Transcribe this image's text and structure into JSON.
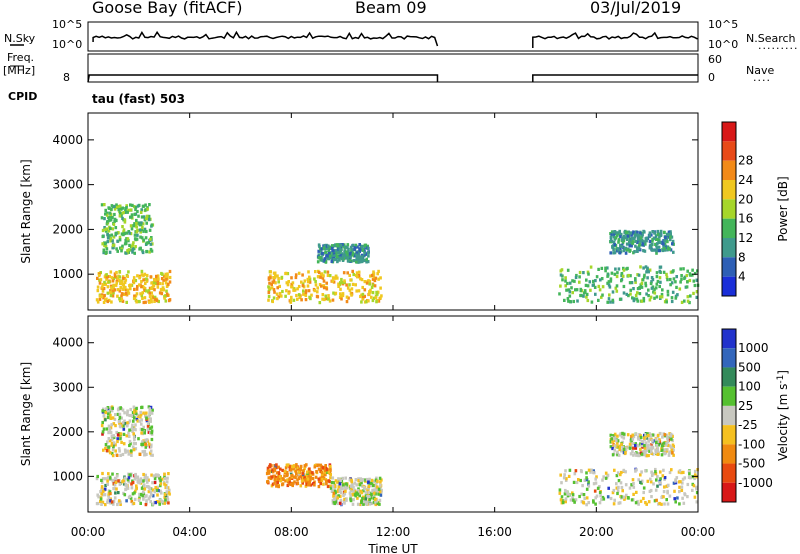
{
  "header": {
    "station": "Goose Bay (fitACF)",
    "beam": "Beam 09",
    "date": "03/Jul/2019"
  },
  "strip": {
    "nsky_label": "N.Sky",
    "nsearch_label": "N.Search",
    "nsearch_dots": ".........",
    "top_ticks": [
      "10^5",
      "10^0"
    ],
    "freq_label_1": "Freq.",
    "freq_label_2": "[MHz]",
    "freq_tick": "8",
    "nave_label": "Nave",
    "nave_dots": "....",
    "nave_ticks": [
      "60",
      "0"
    ],
    "cpid_label": "CPID",
    "cpid_value": "tau (fast) 503"
  },
  "chart_data": [
    {
      "type": "heatmap",
      "title": "",
      "parameter": "Power",
      "xlabel": "Time UT",
      "ylabel": "Slant Range [km]",
      "x_range_hours": [
        0,
        24
      ],
      "ylim": [
        200,
        4600
      ],
      "x_ticks": [
        "00:00",
        "04:00",
        "08:00",
        "12:00",
        "16:00",
        "20:00",
        "00:00"
      ],
      "y_ticks": [
        1000,
        2000,
        3000,
        4000
      ],
      "colorbar": {
        "label": "Power [dB]",
        "ticks": [
          4,
          8,
          12,
          16,
          20,
          24,
          28
        ],
        "range": [
          0,
          30
        ],
        "colors": [
          "#1a2fd8",
          "#2d5fb5",
          "#3f9a8c",
          "#43b55a",
          "#a6d62a",
          "#f0c820",
          "#f28a18",
          "#e84a18",
          "#d81818"
        ]
      },
      "data_gap_hours": [
        13.75,
        17.5
      ],
      "echo_regions": [
        {
          "t0": 0.3,
          "t1": 3.2,
          "r0": 400,
          "r1": 1100,
          "level": 20
        },
        {
          "t0": 0.5,
          "t1": 2.5,
          "r0": 1500,
          "r1": 2600,
          "level": 10
        },
        {
          "t0": 7.0,
          "t1": 11.5,
          "r0": 400,
          "r1": 1100,
          "level": 18
        },
        {
          "t0": 9.0,
          "t1": 11.0,
          "r0": 1300,
          "r1": 1700,
          "level": 9
        },
        {
          "t0": 18.5,
          "t1": 24.0,
          "r0": 400,
          "r1": 1200,
          "level": 10
        },
        {
          "t0": 20.5,
          "t1": 23.0,
          "r0": 1500,
          "r1": 2000,
          "level": 8
        }
      ]
    },
    {
      "type": "heatmap",
      "title": "",
      "parameter": "Velocity",
      "xlabel": "Time UT",
      "ylabel": "Slant Range [km]",
      "x_range_hours": [
        0,
        24
      ],
      "ylim": [
        200,
        4600
      ],
      "x_ticks": [
        "00:00",
        "04:00",
        "08:00",
        "12:00",
        "16:00",
        "20:00",
        "00:00"
      ],
      "y_ticks": [
        1000,
        2000,
        3000,
        4000
      ],
      "colorbar": {
        "label": "Velocity [m s-1]",
        "label_text": "Velocity",
        "label_unit": "[m s",
        "label_exp": "-1",
        "label_close": "]",
        "ticks": [
          "1000",
          "500",
          "100",
          "25",
          "-25",
          "-100",
          "-500",
          "-1000"
        ],
        "colors": [
          "#2233cc",
          "#3366bb",
          "#338a5a",
          "#55c030",
          "#c8c8c0",
          "#f5c020",
          "#f08a10",
          "#e84a10",
          "#d81818"
        ]
      },
      "data_gap_hours": [
        13.75,
        17.5
      ],
      "echo_regions": [
        {
          "t0": 0.3,
          "t1": 3.2,
          "r0": 400,
          "r1": 1100,
          "level": 0
        },
        {
          "t0": 0.5,
          "t1": 2.5,
          "r0": 1500,
          "r1": 2600,
          "level": 0
        },
        {
          "t0": 7.0,
          "t1": 9.5,
          "r0": 800,
          "r1": 1300,
          "level": -300
        },
        {
          "t0": 9.5,
          "t1": 11.5,
          "r0": 400,
          "r1": 1000,
          "level": 0
        },
        {
          "t0": 18.5,
          "t1": 24.0,
          "r0": 400,
          "r1": 1200,
          "level": 0
        },
        {
          "t0": 20.5,
          "t1": 23.0,
          "r0": 1500,
          "r1": 2000,
          "level": 0
        }
      ]
    }
  ]
}
